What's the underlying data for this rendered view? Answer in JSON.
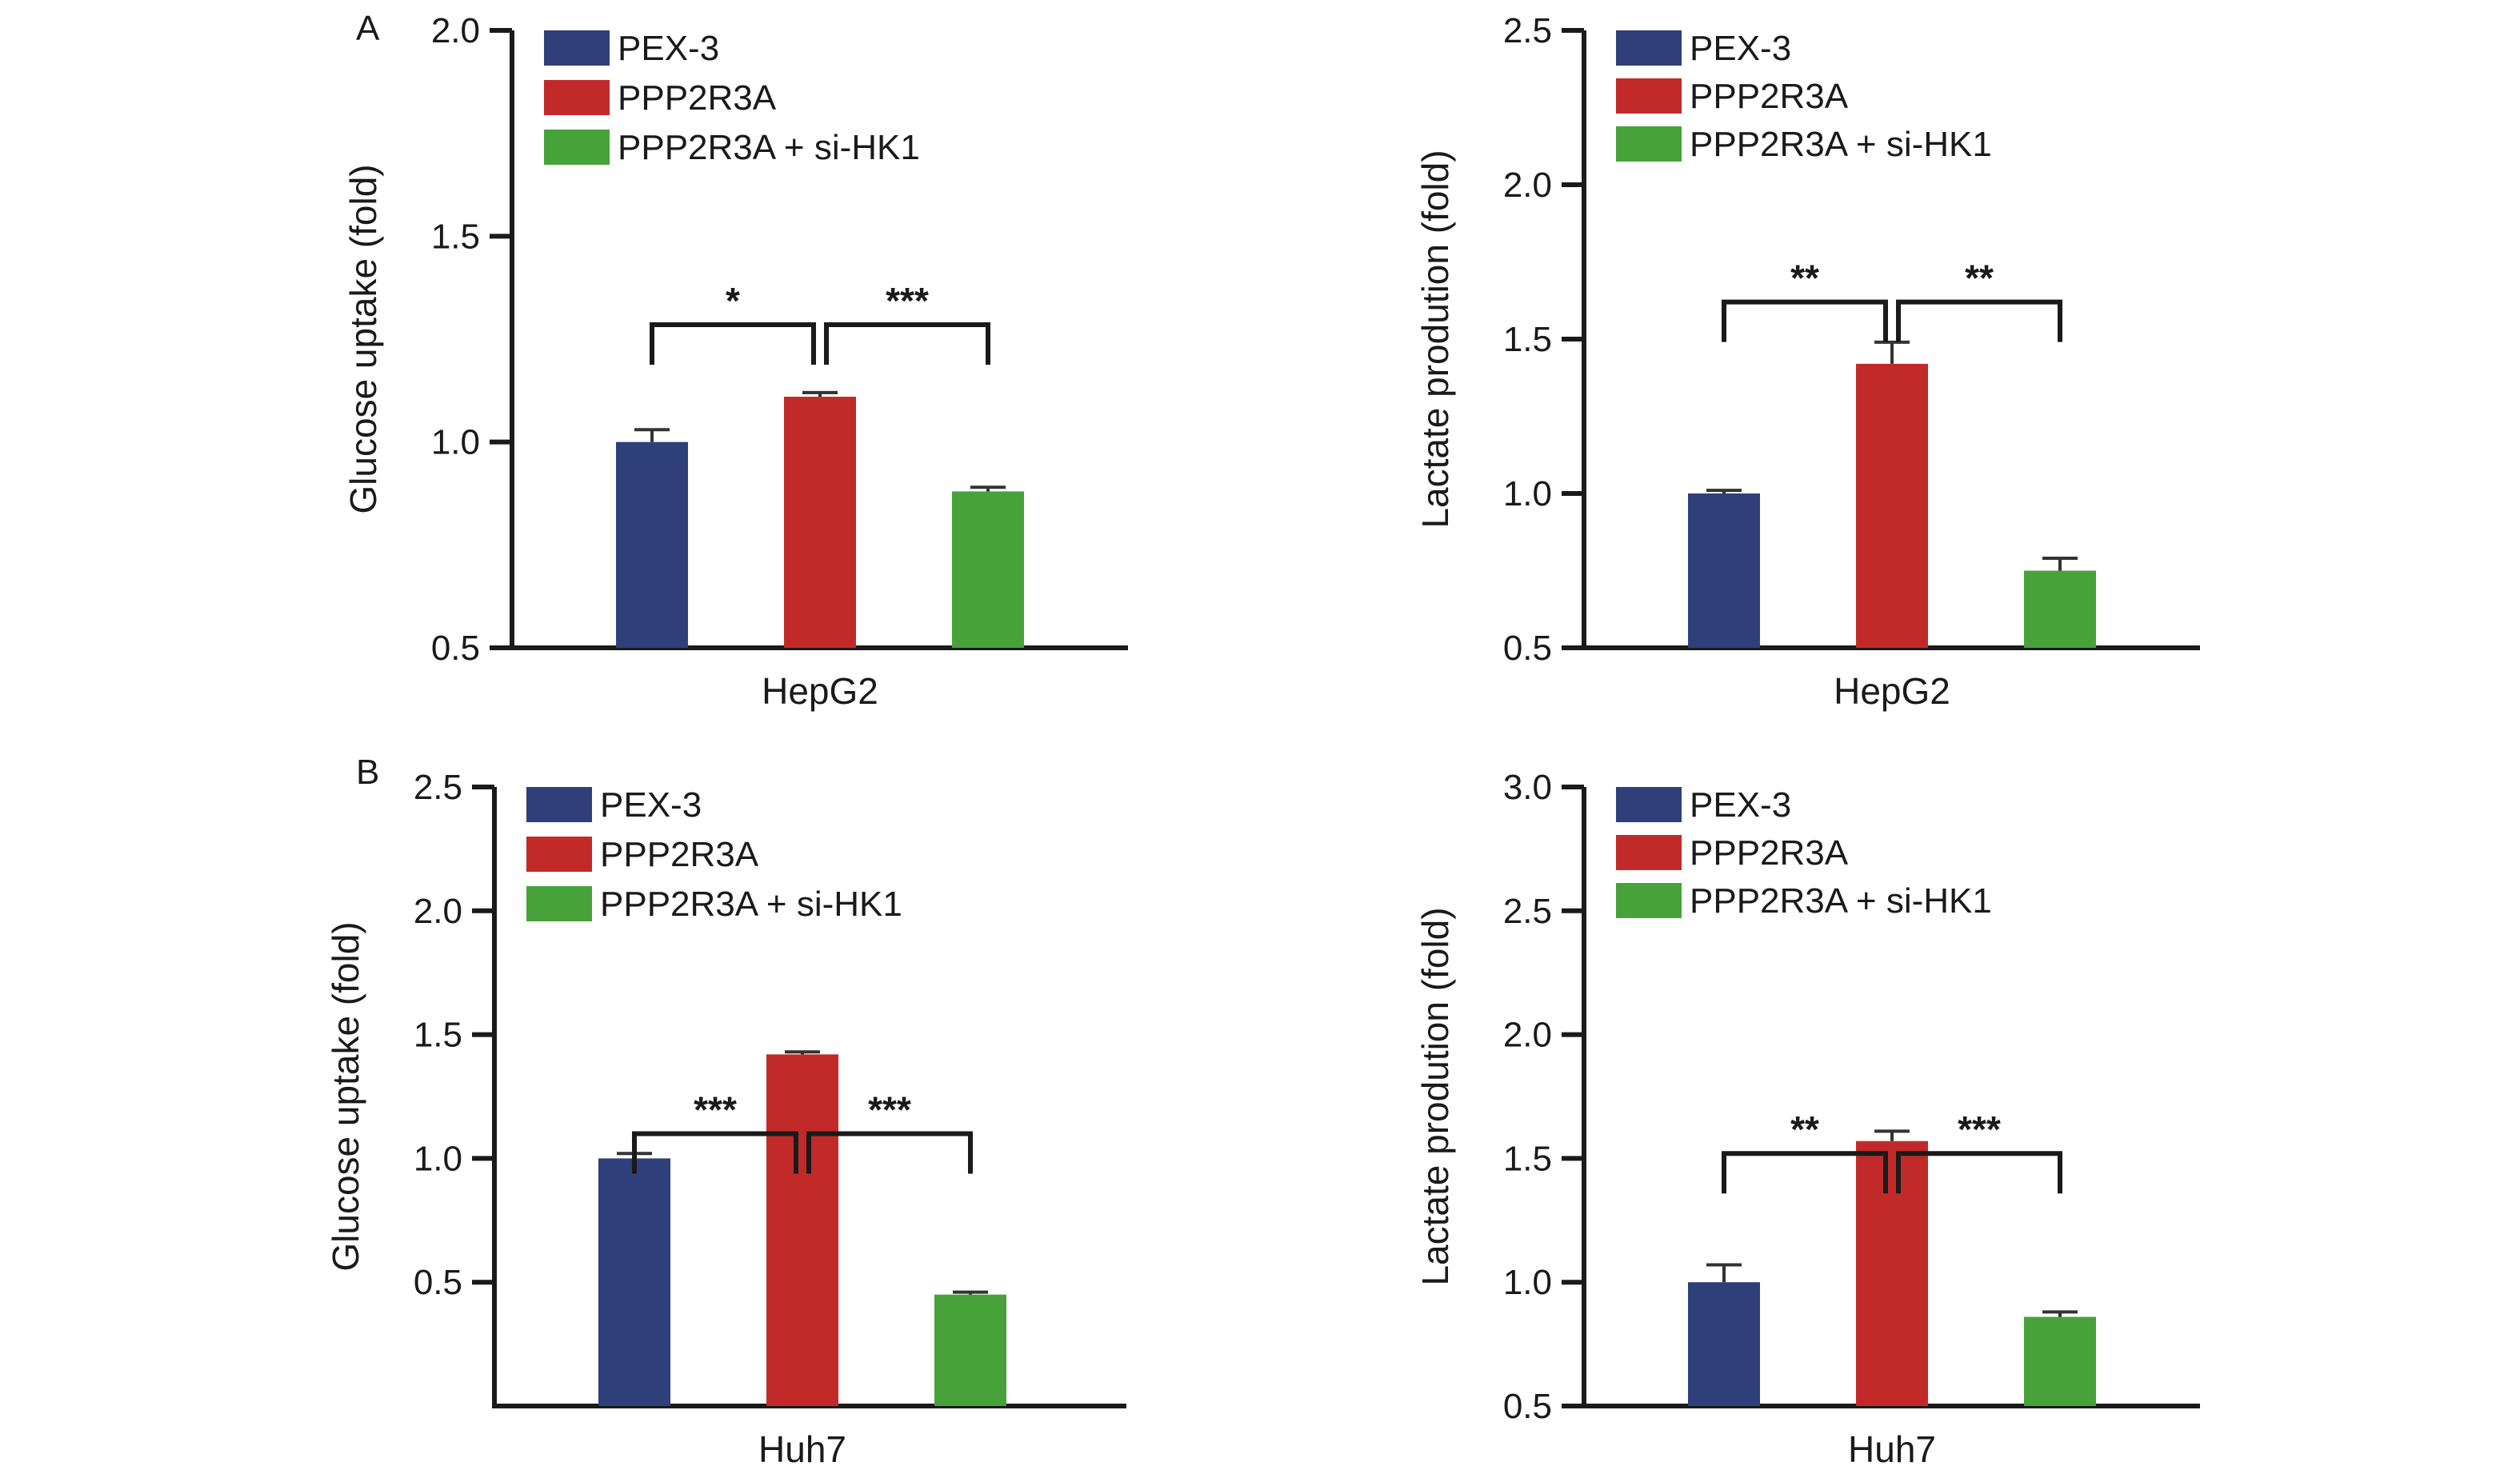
{
  "colors": {
    "series": [
      "#2e3f7a",
      "#c22a2a",
      "#47a23a"
    ],
    "axis": "#1a1a1a"
  },
  "chart_data": [
    {
      "type": "bar",
      "panel": "A",
      "categories": [
        "HepG2"
      ],
      "series": [
        {
          "name": "PEX-3",
          "values": [
            1.0
          ],
          "error": [
            0.03
          ]
        },
        {
          "name": "PPP2R3A",
          "values": [
            1.11
          ],
          "error": [
            0.01
          ]
        },
        {
          "name": "PPP2R3A + si-HK1",
          "values": [
            0.88
          ],
          "error": [
            0.01
          ]
        }
      ],
      "xlabel": "HepG2",
      "ylabel": "Glucose uptake (fold)",
      "ylim": [
        0.5,
        2.0
      ],
      "yticks": [
        "0.5",
        "1.0",
        "1.5",
        "2.0"
      ],
      "significance": [
        {
          "between": [
            "PEX-3",
            "PPP2R3A"
          ],
          "label": "*"
        },
        {
          "between": [
            "PPP2R3A",
            "PPP2R3A + si-HK1"
          ],
          "label": "***"
        }
      ],
      "legend": "top-left"
    },
    {
      "type": "bar",
      "panel": "",
      "categories": [
        "HepG2"
      ],
      "series": [
        {
          "name": "PEX-3",
          "values": [
            1.0
          ],
          "error": [
            0.01
          ]
        },
        {
          "name": "PPP2R3A",
          "values": [
            1.42
          ],
          "error": [
            0.07
          ]
        },
        {
          "name": "PPP2R3A + si-HK1",
          "values": [
            0.75
          ],
          "error": [
            0.04
          ]
        }
      ],
      "xlabel": "HepG2",
      "ylabel": "Lactate prodution (fold)",
      "ylim": [
        0.5,
        2.5
      ],
      "yticks": [
        "0.5",
        "1.0",
        "1.5",
        "2.0",
        "2.5"
      ],
      "significance": [
        {
          "between": [
            "PEX-3",
            "PPP2R3A"
          ],
          "label": "**"
        },
        {
          "between": [
            "PPP2R3A",
            "PPP2R3A + si-HK1"
          ],
          "label": "**"
        }
      ],
      "legend": "top-left"
    },
    {
      "type": "bar",
      "panel": "B",
      "categories": [
        "Huh7"
      ],
      "series": [
        {
          "name": "PEX-3",
          "values": [
            1.0
          ],
          "error": [
            0.02
          ]
        },
        {
          "name": "PPP2R3A",
          "values": [
            1.42
          ],
          "error": [
            0.01
          ]
        },
        {
          "name": "PPP2R3A + si-HK1",
          "values": [
            0.45
          ],
          "error": [
            0.01
          ]
        }
      ],
      "xlabel": "Huh7",
      "ylabel": "Glucose uptake (fold)",
      "ylim": [
        0.0,
        2.5
      ],
      "yticks": [
        "0.5",
        "1.0",
        "1.5",
        "2.0",
        "2.5"
      ],
      "significance": [
        {
          "between": [
            "PEX-3",
            "PPP2R3A"
          ],
          "label": "***"
        },
        {
          "between": [
            "PPP2R3A",
            "PPP2R3A + si-HK1"
          ],
          "label": "***"
        }
      ],
      "legend": "top-left"
    },
    {
      "type": "bar",
      "panel": "",
      "categories": [
        "Huh7"
      ],
      "series": [
        {
          "name": "PEX-3",
          "values": [
            1.0
          ],
          "error": [
            0.07
          ]
        },
        {
          "name": "PPP2R3A",
          "values": [
            1.57
          ],
          "error": [
            0.04
          ]
        },
        {
          "name": "PPP2R3A + si-HK1",
          "values": [
            0.86
          ],
          "error": [
            0.02
          ]
        }
      ],
      "xlabel": "Huh7",
      "ylabel": "Lactate prodution (fold)",
      "ylim": [
        0.5,
        3.0
      ],
      "yticks": [
        "0.5",
        "1.0",
        "1.5",
        "2.0",
        "2.5",
        "3.0"
      ],
      "significance": [
        {
          "between": [
            "PEX-3",
            "PPP2R3A"
          ],
          "label": "**"
        },
        {
          "between": [
            "PPP2R3A",
            "PPP2R3A + si-HK1"
          ],
          "label": "***"
        }
      ],
      "legend": "top-left"
    }
  ]
}
